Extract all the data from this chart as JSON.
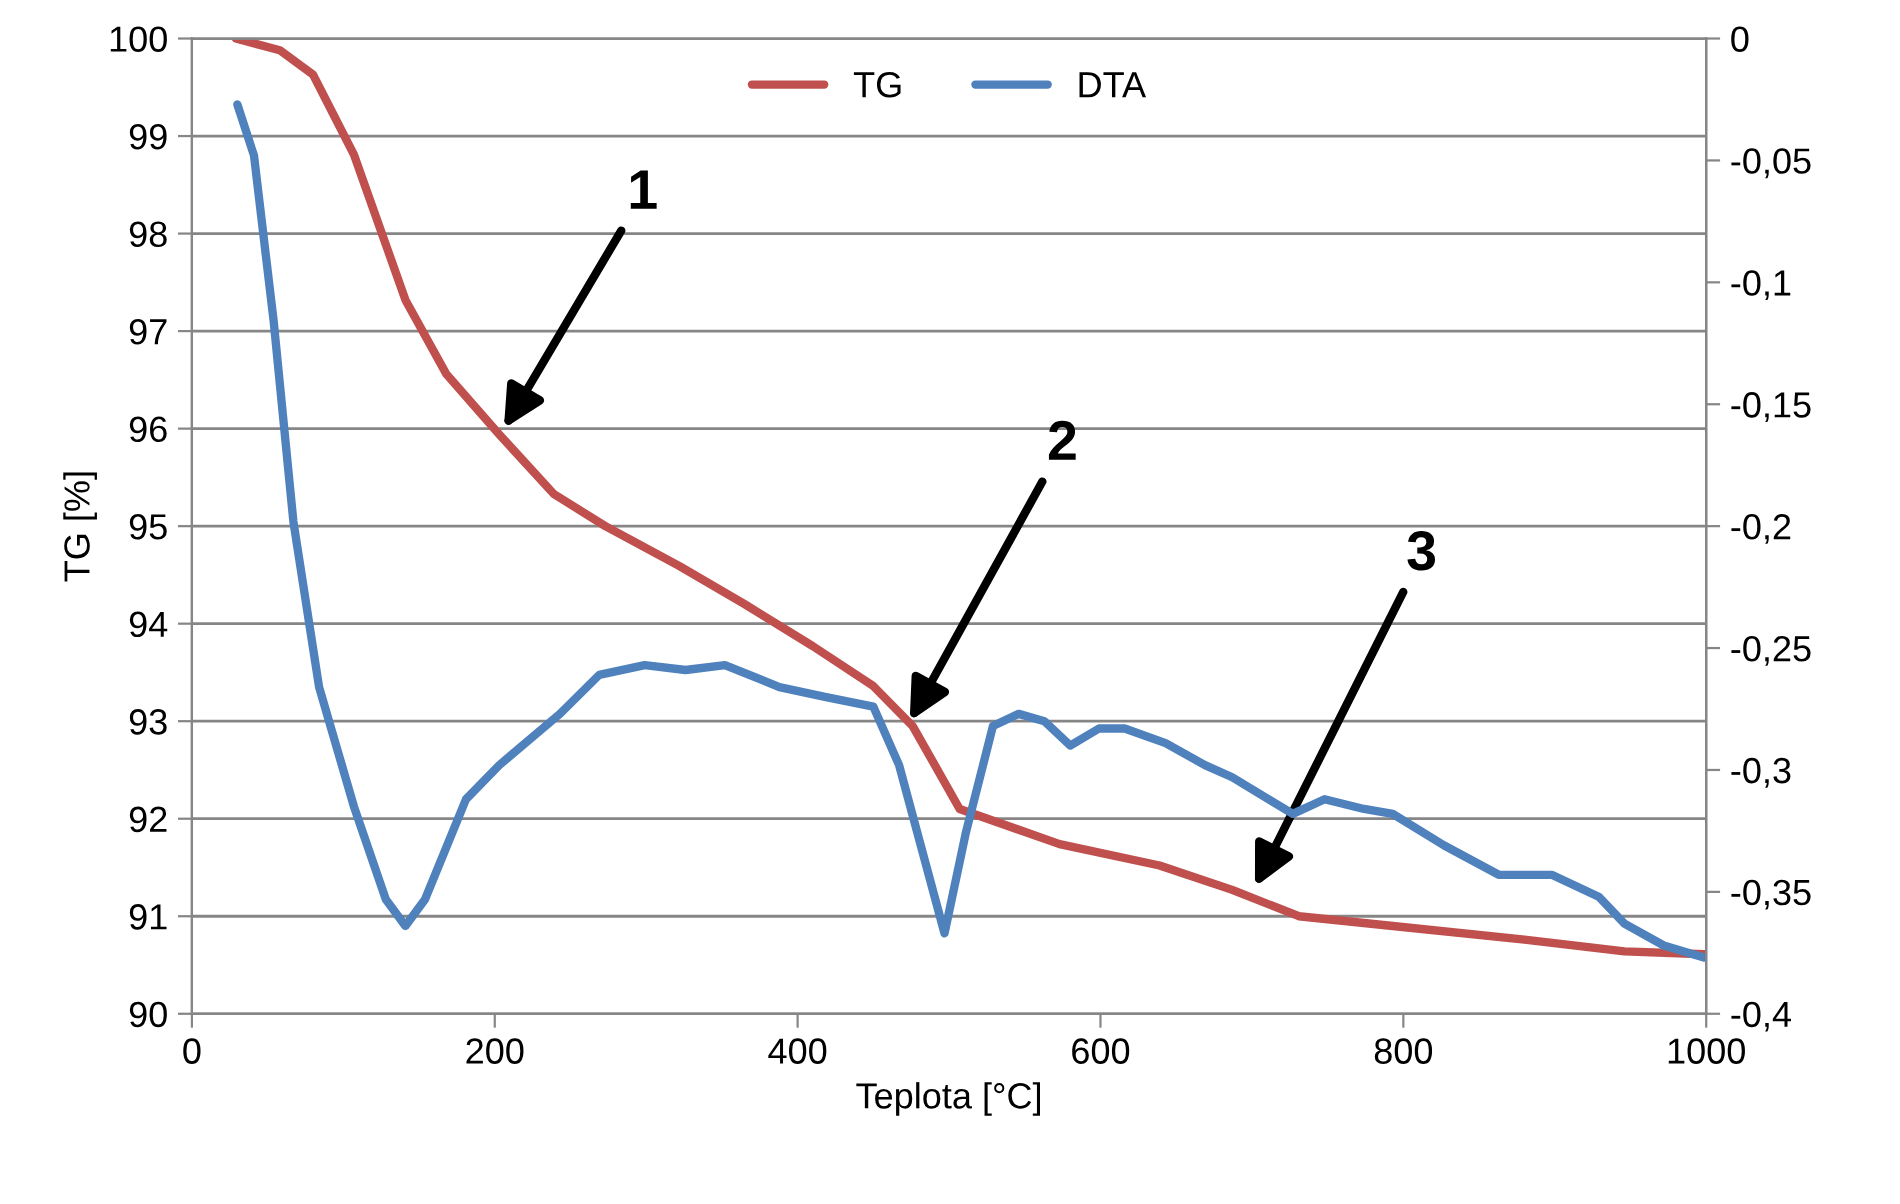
{
  "chart_data": {
    "type": "line",
    "xlabel": "Teplota [°C]",
    "ylabel": "TG [%]",
    "xlim": [
      0,
      1000
    ],
    "xticks": [
      0,
      200,
      400,
      600,
      800,
      1000
    ],
    "ylim": [
      90,
      100
    ],
    "yticks": [
      90,
      91,
      92,
      93,
      94,
      95,
      96,
      97,
      98,
      99,
      100
    ],
    "y2lim": [
      -0.4,
      0
    ],
    "y2ticks": [
      {
        "value": -0.4,
        "label": "-0,4"
      },
      {
        "value": -0.35,
        "label": "-0,35"
      },
      {
        "value": -0.3,
        "label": "-0,3"
      },
      {
        "value": -0.25,
        "label": "-0,25"
      },
      {
        "value": -0.2,
        "label": "-0,2"
      },
      {
        "value": -0.15,
        "label": "-0,15"
      },
      {
        "value": -0.1,
        "label": "-0,1"
      },
      {
        "value": -0.05,
        "label": "-0,05"
      },
      {
        "value": 0,
        "label": "0"
      }
    ],
    "grid": "y",
    "legend": "top",
    "line_style": "solid",
    "marker": "none",
    "series": [
      {
        "name": "TG",
        "color": "#c0504d",
        "x": [
          29,
          58,
          80,
          107,
          141,
          168,
          203,
          239,
          273,
          322,
          365,
          410,
          450,
          476,
          507,
          573,
          639,
          687,
          731,
          793,
          880,
          946,
          999
        ],
        "values": [
          100,
          99.88,
          99.63,
          98.81,
          97.32,
          96.56,
          95.94,
          95.33,
          95.0,
          94.59,
          94.2,
          93.77,
          93.36,
          92.95,
          92.1,
          91.74,
          91.52,
          91.27,
          91.0,
          90.9,
          90.76,
          90.64,
          90.61
        ]
      },
      {
        "name": "DTA",
        "color": "#4f81bd",
        "axis": "y2",
        "x": [
          30,
          41,
          54,
          67,
          84,
          107,
          128,
          141,
          154,
          181,
          203,
          243,
          269,
          299,
          326,
          352,
          388,
          418,
          450,
          467,
          497,
          511,
          529,
          546,
          563,
          580,
          599,
          616,
          643,
          669,
          687,
          727,
          748,
          774,
          793,
          827,
          863,
          898,
          929,
          946,
          972,
          999
        ],
        "values": [
          -0.027,
          -0.048,
          -0.116,
          -0.198,
          -0.266,
          -0.315,
          -0.353,
          -0.364,
          -0.353,
          -0.312,
          -0.298,
          -0.277,
          -0.261,
          -0.257,
          -0.259,
          -0.257,
          -0.266,
          -0.27,
          -0.274,
          -0.298,
          -0.367,
          -0.326,
          -0.282,
          -0.277,
          -0.28,
          -0.29,
          -0.283,
          -0.283,
          -0.289,
          -0.298,
          -0.303,
          -0.318,
          -0.312,
          -0.316,
          -0.318,
          -0.331,
          -0.343,
          -0.343,
          -0.352,
          -0.363,
          -0.372,
          -0.377
        ]
      }
    ],
    "annotations": [
      {
        "text": "1",
        "x": 206,
        "y": 96
      },
      {
        "text": "2",
        "x": 474,
        "y": 93
      },
      {
        "text": "3",
        "x": 702,
        "y": 91.3
      }
    ]
  }
}
